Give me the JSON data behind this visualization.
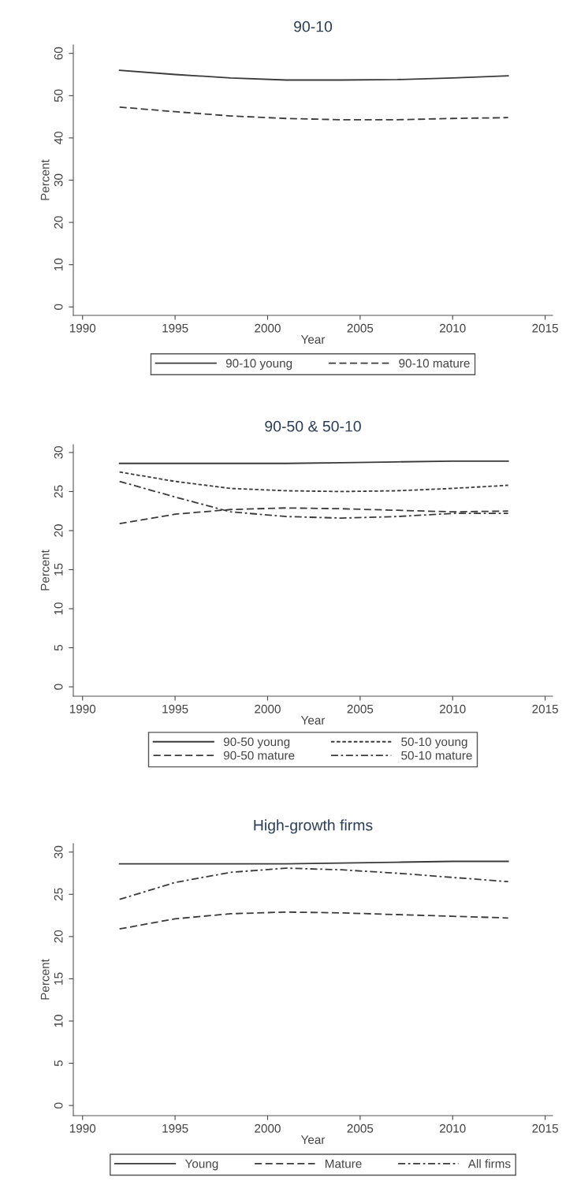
{
  "chart_data": [
    {
      "type": "line",
      "title": "90-10",
      "xlabel": "Year",
      "ylabel": "Percent",
      "xlim": [
        1989.5,
        2015.4
      ],
      "xticks": [
        1990,
        1995,
        2000,
        2005,
        2010,
        2015
      ],
      "ylim": [
        -2,
        62
      ],
      "yticks": [
        0,
        10,
        20,
        30,
        40,
        50,
        60
      ],
      "grid": false,
      "legend": "bottom",
      "x": [
        1992,
        1995,
        1998,
        2001,
        2004,
        2007,
        2010,
        2013
      ],
      "series": [
        {
          "name": "90-10 young",
          "color": "#3a3a3a",
          "line_style": "solid",
          "values": [
            56,
            55,
            54.2,
            53.7,
            53.7,
            53.8,
            54.2,
            54.7
          ]
        },
        {
          "name": "90-10 mature",
          "color": "#3a3a3a",
          "line_style": "dashed",
          "values": [
            47.3,
            46.2,
            45.2,
            44.6,
            44.3,
            44.3,
            44.6,
            44.8
          ]
        }
      ]
    },
    {
      "type": "line",
      "title": "90-50 & 50-10",
      "xlabel": "Year",
      "ylabel": "Percent",
      "xlim": [
        1989.5,
        2015.4
      ],
      "xticks": [
        1990,
        1995,
        2000,
        2005,
        2010,
        2015
      ],
      "ylim": [
        -1.2,
        31
      ],
      "yticks": [
        0,
        5,
        10,
        15,
        20,
        25,
        30
      ],
      "grid": false,
      "legend": "bottom",
      "x": [
        1992,
        1995,
        1998,
        2001,
        2004,
        2007,
        2010,
        2013
      ],
      "series": [
        {
          "name": "90-50 young",
          "color": "#3a3a3a",
          "line_style": "solid",
          "values": [
            28.6,
            28.6,
            28.6,
            28.6,
            28.7,
            28.8,
            28.9,
            28.9
          ]
        },
        {
          "name": "50-10 young",
          "color": "#3a3a3a",
          "line_style": "dotted",
          "values": [
            27.5,
            26.3,
            25.4,
            25.1,
            25.0,
            25.1,
            25.4,
            25.8
          ]
        },
        {
          "name": "90-50 mature",
          "color": "#3a3a3a",
          "line_style": "dashed",
          "values": [
            20.9,
            22.1,
            22.7,
            22.9,
            22.8,
            22.6,
            22.4,
            22.5
          ]
        },
        {
          "name": "50-10 mature",
          "color": "#3a3a3a",
          "line_style": "dashdot",
          "values": [
            26.3,
            24.3,
            22.4,
            21.8,
            21.6,
            21.8,
            22.2,
            22.2
          ]
        }
      ]
    },
    {
      "type": "line",
      "title": "High-growth firms",
      "xlabel": "Year",
      "ylabel": "Percent",
      "xlim": [
        1989.5,
        2015.4
      ],
      "xticks": [
        1990,
        1995,
        2000,
        2005,
        2010,
        2015
      ],
      "ylim": [
        -1.2,
        31
      ],
      "yticks": [
        0,
        5,
        10,
        15,
        20,
        25,
        30
      ],
      "grid": false,
      "legend": "bottom",
      "x": [
        1992,
        1995,
        1998,
        2001,
        2004,
        2007,
        2010,
        2013
      ],
      "series": [
        {
          "name": "Young",
          "color": "#3a3a3a",
          "line_style": "solid",
          "values": [
            28.6,
            28.6,
            28.6,
            28.6,
            28.7,
            28.8,
            28.9,
            28.9
          ]
        },
        {
          "name": "Mature",
          "color": "#3a3a3a",
          "line_style": "dashed",
          "values": [
            20.9,
            22.1,
            22.7,
            22.9,
            22.8,
            22.6,
            22.4,
            22.2
          ]
        },
        {
          "name": "All firms",
          "color": "#3a3a3a",
          "line_style": "dashdot",
          "values": [
            24.4,
            26.4,
            27.6,
            28.1,
            27.9,
            27.5,
            27.0,
            26.5
          ]
        }
      ]
    }
  ]
}
